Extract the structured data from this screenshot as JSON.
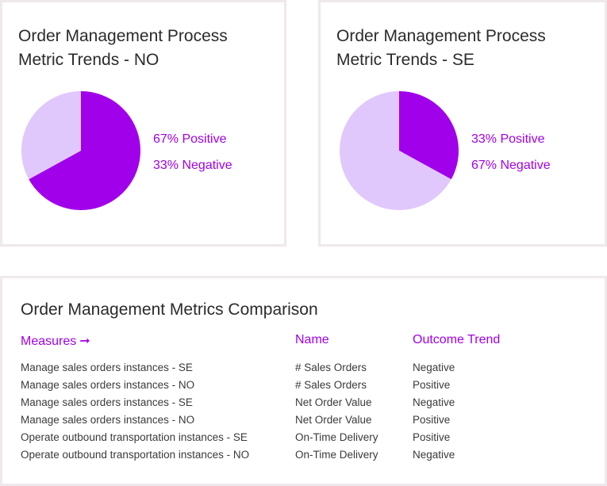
{
  "colors": {
    "positive": "#a100ea",
    "negative": "#e0c8fc",
    "accent": "#a100ea"
  },
  "chart_data": [
    {
      "type": "pie",
      "title": "Order Management Process Metric Trends - NO",
      "categories": [
        "Positive",
        "Negative"
      ],
      "values": [
        67,
        33
      ],
      "legend_labels": [
        "67% Positive",
        "33% Negative"
      ],
      "legend_position": "right"
    },
    {
      "type": "pie",
      "title": "Order Management Process Metric Trends - SE",
      "categories": [
        "Positive",
        "Negative"
      ],
      "values": [
        33,
        67
      ],
      "legend_labels": [
        "33% Positive",
        "67% Negative"
      ],
      "legend_position": "right"
    }
  ],
  "table": {
    "title": "Order Management Metrics Comparison",
    "headers": {
      "measures": "Measures",
      "measures_arrow": "➞",
      "name": "Name",
      "outcome": "Outcome Trend"
    },
    "rows": [
      {
        "measure": "Manage sales orders instances - SE",
        "name": "# Sales Orders",
        "outcome": "Negative"
      },
      {
        "measure": "Manage sales orders instances - NO",
        "name": "# Sales Orders",
        "outcome": "Positive"
      },
      {
        "measure": "Manage sales orders instances - SE",
        "name": "Net Order Value",
        "outcome": "Negative"
      },
      {
        "measure": "Manage sales orders instances - NO",
        "name": "Net Order Value",
        "outcome": "Positive"
      },
      {
        "measure": "Operate outbound transportation instances - SE",
        "name": "On-Time Delivery",
        "outcome": "Positive"
      },
      {
        "measure": "Operate outbound transportation instances - NO",
        "name": "On-Time Delivery",
        "outcome": "Negative"
      }
    ]
  }
}
